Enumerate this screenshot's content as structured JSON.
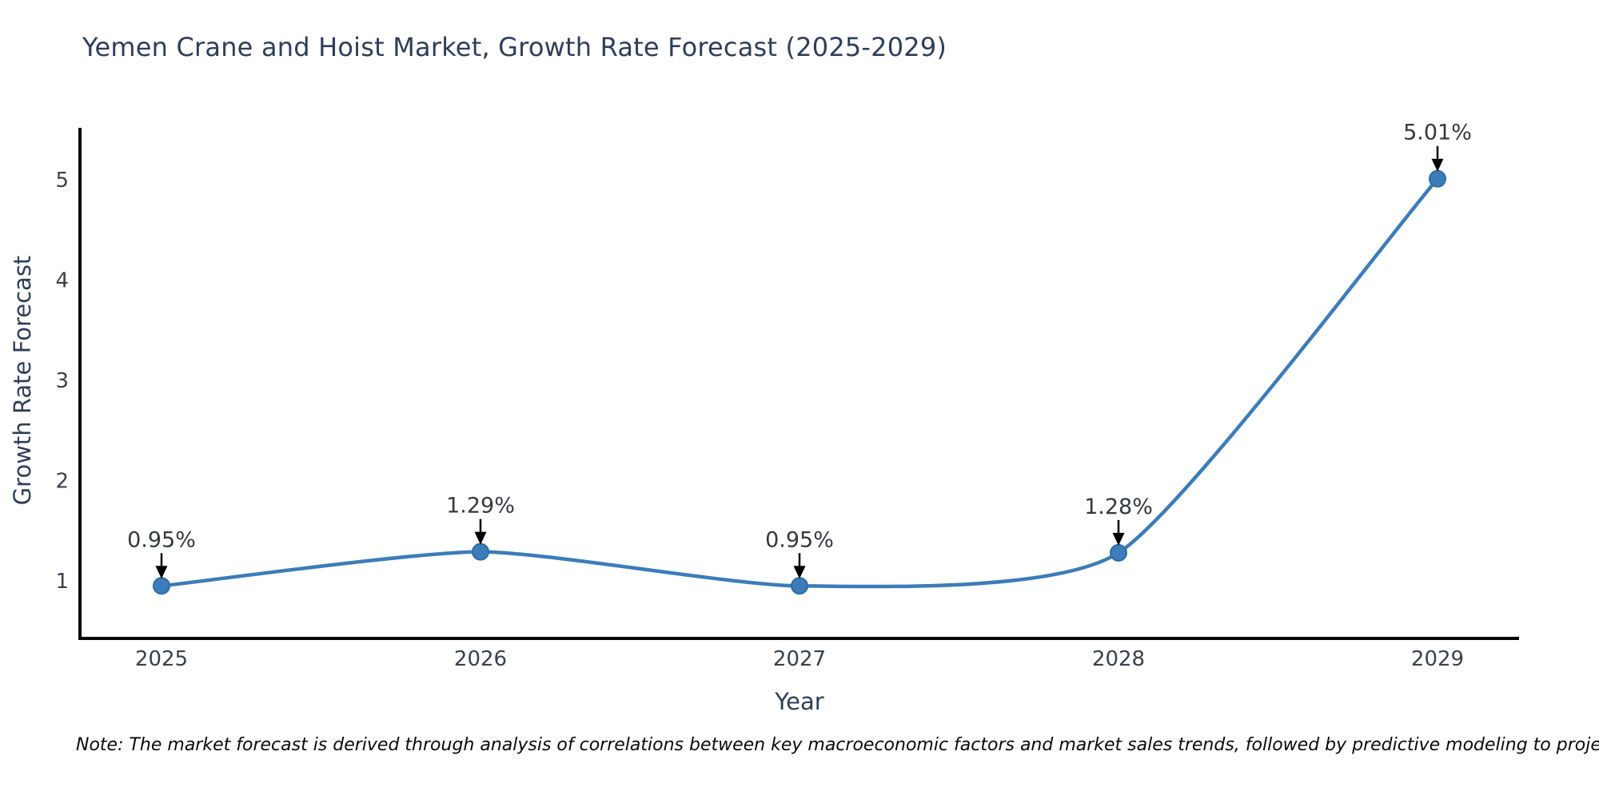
{
  "title": "Yemen Crane and Hoist Market, Growth Rate Forecast (2025-2029)",
  "note": "Note: The market forecast is derived through analysis of correlations between key macroeconomic factors and market sales trends, followed by predictive modeling to project future sales.",
  "chart_data": {
    "type": "line",
    "line_shape": "spline",
    "x": [
      2025,
      2026,
      2027,
      2028,
      2029
    ],
    "series": [
      {
        "name": "Growth Rate Forecast",
        "values": [
          0.95,
          1.29,
          0.95,
          1.28,
          5.01
        ]
      }
    ],
    "point_labels": [
      "0.95%",
      "1.29%",
      "0.95%",
      "1.28%",
      "5.01%"
    ],
    "title": "Yemen Crane and Hoist Market, Growth Rate Forecast (2025-2029)",
    "xlabel": "Year",
    "ylabel": "Growth Rate Forecast",
    "xticks": [
      "2025",
      "2026",
      "2027",
      "2028",
      "2029"
    ],
    "yticks": [
      1,
      2,
      3,
      4,
      5
    ],
    "ylim": [
      0.43,
      5.55
    ],
    "grid": false,
    "legend": "none",
    "annotations_have_arrows": true
  },
  "colors": {
    "line": "#3c7cb9",
    "marker_fill": "#3c7cb9",
    "marker_edge": "#2f6ba6",
    "axis": "#000000",
    "tick_label": "#39414d",
    "annotation_text": "#33393f",
    "arrow": "#000000",
    "title_text": "#2e3e5a",
    "background": "#ffffff"
  }
}
